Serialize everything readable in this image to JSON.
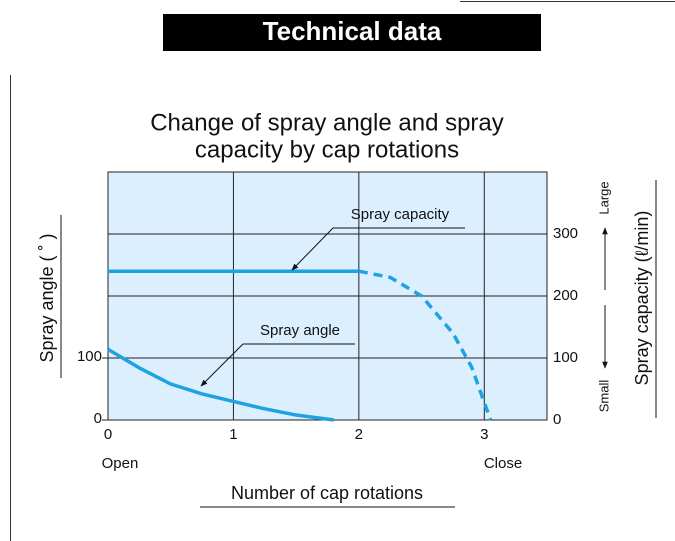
{
  "header": {
    "title": "Technical data"
  },
  "chart_data": {
    "type": "line",
    "title": [
      "Change of spray angle and spray",
      "capacity by cap rotations"
    ],
    "x_label": "Number of cap rotations",
    "y_label": "Spray angle ( ˚ )",
    "y2_label": "Spray capacity (ℓ/min)",
    "xlim": [
      0,
      3.5
    ],
    "xticks": [
      0,
      1,
      2,
      3
    ],
    "ylim": [
      0,
      400
    ],
    "yticks": [
      0,
      100
    ],
    "y2lim": [
      0,
      400
    ],
    "y2ticks": [
      0,
      100,
      200,
      300
    ],
    "grid": true,
    "x_end_labels": [
      "Open",
      "Close"
    ],
    "y2_end_labels": [
      "Small",
      "Large"
    ],
    "series": [
      {
        "name": "Spray capacity",
        "color": "#1fa3e0",
        "axis": "y2",
        "segments": [
          {
            "style": "solid",
            "x": [
              0,
              2
            ],
            "values": [
              240,
              240
            ]
          },
          {
            "style": "dashed",
            "x": [
              2,
              2.25,
              2.5,
              2.75,
              2.9,
              3.05
            ],
            "values": [
              240,
              230,
              200,
              140,
              85,
              0
            ]
          }
        ]
      },
      {
        "name": "Spray angle",
        "color": "#1fa3e0",
        "axis": "y",
        "segments": [
          {
            "style": "solid",
            "x": [
              0,
              0.25,
              0.5,
              0.75,
              1,
              1.25,
              1.5,
              1.8
            ],
            "values": [
              114,
              84,
              58,
              42,
              30,
              18,
              8,
              0
            ]
          }
        ]
      }
    ]
  }
}
